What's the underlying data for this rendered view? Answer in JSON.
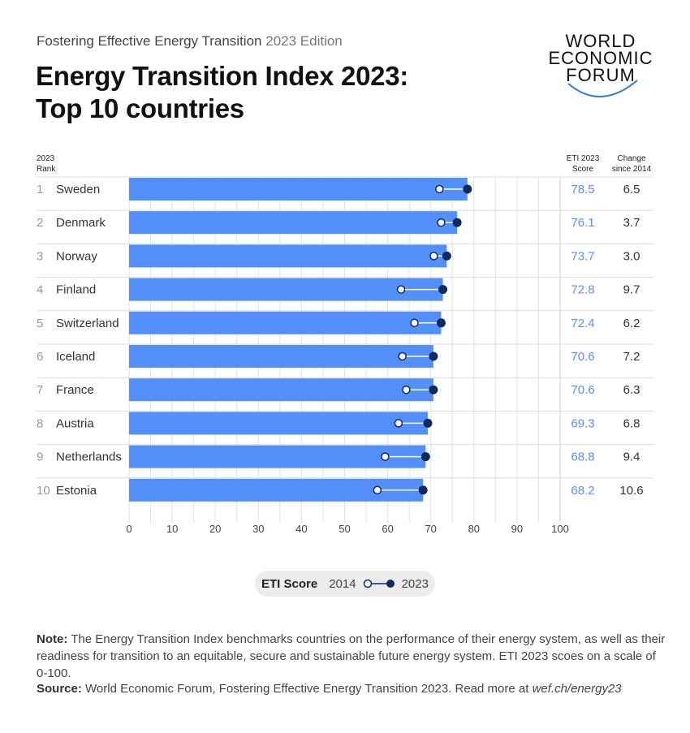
{
  "header": {
    "subtitle_main": "Fostering Effective Energy Transition",
    "subtitle_edition": "2023 Edition",
    "title_line1": "Energy Transition Index 2023:",
    "title_line2": "Top 10 countries",
    "logo": [
      "WORLD",
      "ECONOMIC",
      "FORUM"
    ]
  },
  "columns": {
    "rank_line1": "2023",
    "rank_line2": "Rank",
    "score_line1": "ETI 2023",
    "score_line2": "Score",
    "change_line1": "Change",
    "change_line2": "since 2014"
  },
  "colors": {
    "bar": "#528ffb",
    "dot": "#0f2a5e",
    "score_text": "#5c8ff7"
  },
  "chart_data": {
    "type": "bar",
    "orientation": "horizontal",
    "categories": [
      "Sweden",
      "Denmark",
      "Norway",
      "Finland",
      "Switzerland",
      "Iceland",
      "France",
      "Austria",
      "Netherlands",
      "Estonia"
    ],
    "ranks": [
      "1",
      "2",
      "3",
      "4",
      "5",
      "6",
      "7",
      "8",
      "9",
      "10"
    ],
    "series": [
      {
        "name": "2023",
        "values": [
          78.5,
          76.1,
          73.7,
          72.8,
          72.4,
          70.6,
          70.6,
          69.3,
          68.8,
          68.2
        ]
      },
      {
        "name": "2014",
        "values": [
          72.0,
          72.4,
          70.7,
          63.1,
          66.2,
          63.4,
          64.3,
          62.5,
          59.4,
          57.6
        ]
      }
    ],
    "score_labels": [
      "78.5",
      "76.1",
      "73.7",
      "72.8",
      "72.4",
      "70.6",
      "70.6",
      "69.3",
      "68.8",
      "68.2"
    ],
    "change_labels": [
      "6.5",
      "3.7",
      "3.0",
      "9.7",
      "6.2",
      "7.2",
      "6.3",
      "6.8",
      "9.4",
      "10.6"
    ],
    "xlim": [
      0,
      100
    ],
    "xticks": [
      "0",
      "10",
      "20",
      "30",
      "40",
      "50",
      "60",
      "70",
      "80",
      "90",
      "100"
    ],
    "grid": true,
    "legend": {
      "title": "ETI Score",
      "from": "2014",
      "to": "2023",
      "placement": "bottom"
    }
  },
  "footer": {
    "note_label": "Note:",
    "note": " The Energy Transition Index benchmarks countries on the performance of their energy system, as well as their readiness for transition to an equitable, secure and sustainable future energy system. ETI 2023 scoes on a scale of 0-100.",
    "source_label": "Source:",
    "source": " World Economic Forum, Fostering Effective Energy Transition 2023. Read more at ",
    "source_link": "wef.ch/energy23"
  }
}
